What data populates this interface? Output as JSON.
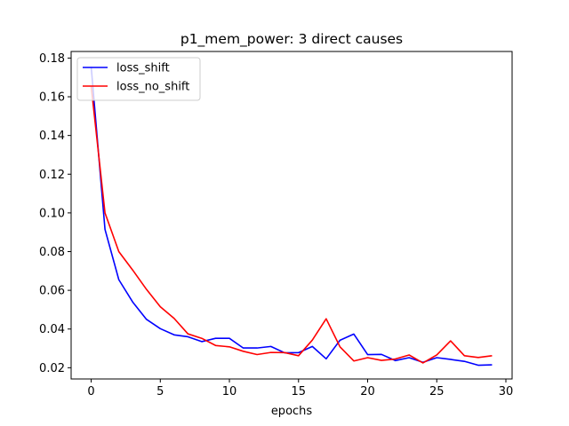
{
  "chart_data": {
    "type": "line",
    "title": "p1_mem_power: 3 direct causes",
    "xlabel": "epochs",
    "ylabel": "",
    "xlim": [
      -1.45,
      30.45
    ],
    "ylim": [
      0.0142,
      0.1834
    ],
    "xticks": [
      0,
      5,
      10,
      15,
      20,
      25,
      30
    ],
    "yticks": [
      0.02,
      0.04,
      0.06,
      0.08,
      0.1,
      0.12,
      0.14,
      0.16,
      0.18
    ],
    "ytick_labels": [
      "0.02",
      "0.04",
      "0.06",
      "0.08",
      "0.10",
      "0.12",
      "0.14",
      "0.16",
      "0.18"
    ],
    "grid": false,
    "legend_position": "top-left",
    "x": [
      0,
      1,
      2,
      3,
      4,
      5,
      6,
      7,
      8,
      9,
      10,
      11,
      12,
      13,
      14,
      15,
      16,
      17,
      18,
      19,
      20,
      21,
      22,
      23,
      24,
      25,
      26,
      27,
      28,
      29
    ],
    "series": [
      {
        "name": "loss_shift",
        "color": "#0000ff",
        "values": [
          0.1755,
          0.0915,
          0.0655,
          0.054,
          0.045,
          0.0402,
          0.037,
          0.036,
          0.0335,
          0.0352,
          0.0352,
          0.0302,
          0.0302,
          0.031,
          0.0277,
          0.0278,
          0.031,
          0.0246,
          0.0342,
          0.0374,
          0.0268,
          0.0269,
          0.0237,
          0.0252,
          0.0228,
          0.0252,
          0.0243,
          0.0233,
          0.0213,
          0.0215
        ]
      },
      {
        "name": "loss_no_shift",
        "color": "#ff0000",
        "values": [
          0.1655,
          0.1,
          0.08,
          0.0705,
          0.0605,
          0.0515,
          0.0455,
          0.0375,
          0.0352,
          0.0315,
          0.0308,
          0.0285,
          0.0268,
          0.0279,
          0.0278,
          0.0262,
          0.0343,
          0.0453,
          0.0308,
          0.0235,
          0.0252,
          0.0238,
          0.0245,
          0.0266,
          0.0225,
          0.0266,
          0.0339,
          0.0262,
          0.0253,
          0.0262
        ]
      }
    ]
  }
}
